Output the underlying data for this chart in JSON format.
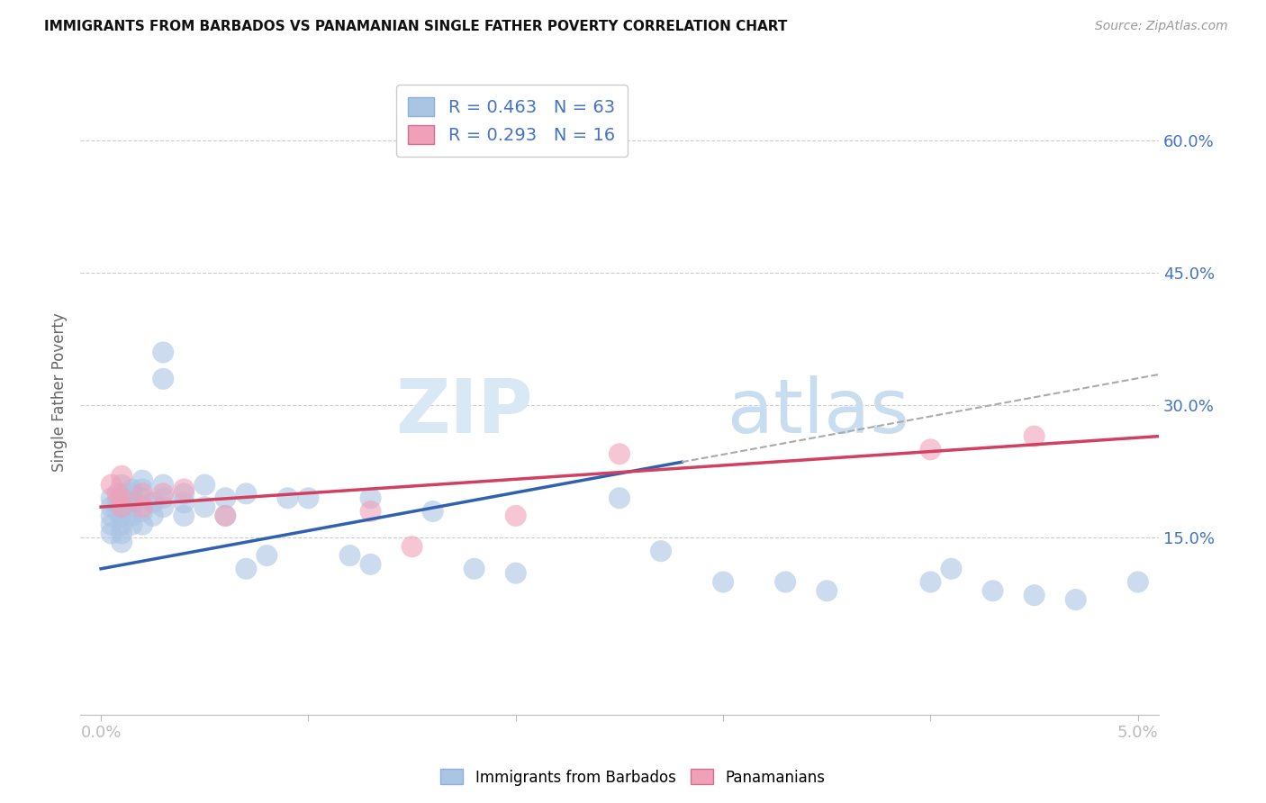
{
  "title": "IMMIGRANTS FROM BARBADOS VS PANAMANIAN SINGLE FATHER POVERTY CORRELATION CHART",
  "source": "Source: ZipAtlas.com",
  "ylabel": "Single Father Poverty",
  "ylabel_right_ticks": [
    "15.0%",
    "30.0%",
    "45.0%",
    "60.0%"
  ],
  "ylabel_right_vals": [
    0.15,
    0.3,
    0.45,
    0.6
  ],
  "xlim": [
    -0.001,
    0.051
  ],
  "ylim": [
    -0.05,
    0.68
  ],
  "legend_r1": "R = 0.463",
  "legend_n1": "N = 63",
  "legend_r2": "R = 0.293",
  "legend_n2": "N = 16",
  "color_blue": "#aac4e4",
  "color_pink": "#f0a0b8",
  "color_line_blue": "#3060b0",
  "color_line_pink": "#d04060",
  "color_title": "#111111",
  "color_source": "#999999",
  "color_axis_label": "#4472c4",
  "legend_label_blue": "Immigrants from Barbados",
  "legend_label_pink": "Panamanians",
  "barbados_x": [
    0.0005,
    0.0005,
    0.0005,
    0.0005,
    0.0005,
    0.0008,
    0.0008,
    0.001,
    0.001,
    0.001,
    0.001,
    0.001,
    0.001,
    0.001,
    0.001,
    0.001,
    0.0015,
    0.0015,
    0.0015,
    0.0015,
    0.0015,
    0.0015,
    0.002,
    0.002,
    0.002,
    0.002,
    0.002,
    0.0025,
    0.0025,
    0.003,
    0.003,
    0.003,
    0.003,
    0.003,
    0.004,
    0.004,
    0.004,
    0.005,
    0.005,
    0.006,
    0.006,
    0.007,
    0.007,
    0.008,
    0.009,
    0.01,
    0.012,
    0.013,
    0.013,
    0.016,
    0.018,
    0.02,
    0.025,
    0.027,
    0.03,
    0.033,
    0.035,
    0.04,
    0.041,
    0.043,
    0.045,
    0.047,
    0.05
  ],
  "barbados_y": [
    0.195,
    0.185,
    0.175,
    0.165,
    0.155,
    0.19,
    0.18,
    0.21,
    0.2,
    0.195,
    0.19,
    0.185,
    0.175,
    0.165,
    0.155,
    0.145,
    0.205,
    0.2,
    0.19,
    0.185,
    0.175,
    0.165,
    0.215,
    0.205,
    0.195,
    0.18,
    0.165,
    0.19,
    0.175,
    0.36,
    0.33,
    0.21,
    0.195,
    0.185,
    0.2,
    0.19,
    0.175,
    0.21,
    0.185,
    0.195,
    0.175,
    0.2,
    0.115,
    0.13,
    0.195,
    0.195,
    0.13,
    0.195,
    0.12,
    0.18,
    0.115,
    0.11,
    0.195,
    0.135,
    0.1,
    0.1,
    0.09,
    0.1,
    0.115,
    0.09,
    0.085,
    0.08,
    0.1
  ],
  "panama_x": [
    0.0005,
    0.0008,
    0.001,
    0.001,
    0.001,
    0.002,
    0.002,
    0.003,
    0.004,
    0.006,
    0.013,
    0.015,
    0.02,
    0.025,
    0.04,
    0.045
  ],
  "panama_y": [
    0.21,
    0.2,
    0.22,
    0.195,
    0.185,
    0.2,
    0.185,
    0.2,
    0.205,
    0.175,
    0.18,
    0.14,
    0.175,
    0.245,
    0.25,
    0.265
  ],
  "trend_blue_x0": 0.0,
  "trend_blue_x1": 0.051,
  "trend_blue_y0": 0.115,
  "trend_blue_y1": 0.335,
  "trend_blue_solid_x1": 0.028,
  "trend_pink_x0": 0.0,
  "trend_pink_x1": 0.051,
  "trend_pink_y0": 0.185,
  "trend_pink_y1": 0.265,
  "grid_color": "#cccccc",
  "watermark_zip_color": "#d8e8f4",
  "watermark_atlas_color": "#c8ddf0"
}
